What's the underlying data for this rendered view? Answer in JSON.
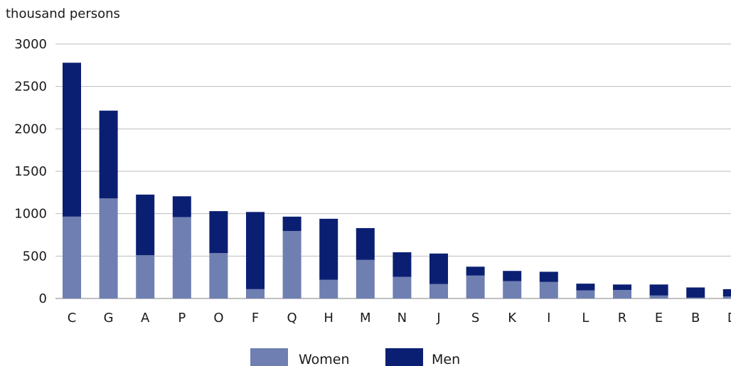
{
  "chart_data": {
    "type": "bar",
    "stacked": true,
    "unit_label": "thousand persons",
    "categories": [
      "C",
      "G",
      "A",
      "P",
      "O",
      "F",
      "Q",
      "H",
      "M",
      "N",
      "J",
      "S",
      "K",
      "I",
      "L",
      "R",
      "E",
      "B",
      "D"
    ],
    "series": [
      {
        "name": "Women",
        "color": "#6f7fb2",
        "values": [
          965,
          1180,
          510,
          960,
          535,
          110,
          795,
          220,
          455,
          255,
          170,
          270,
          205,
          195,
          95,
          100,
          35,
          10,
          25
        ]
      },
      {
        "name": "Men",
        "color": "#0b1f72",
        "values": [
          1815,
          1035,
          715,
          245,
          495,
          910,
          170,
          720,
          375,
          290,
          360,
          105,
          120,
          120,
          80,
          65,
          130,
          120,
          85
        ]
      }
    ],
    "ylim": [
      0,
      3000
    ],
    "yticks": [
      0,
      500,
      1000,
      1500,
      2000,
      2500,
      3000
    ],
    "grid": true,
    "legend": "bottom-center"
  }
}
